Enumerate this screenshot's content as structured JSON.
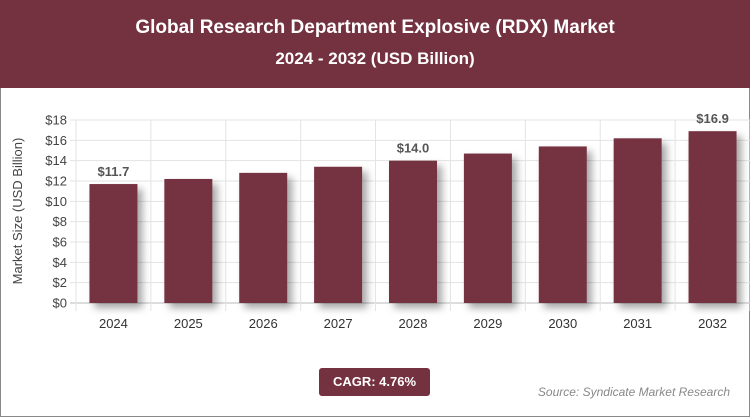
{
  "header": {
    "title": "Global Research Department Explosive (RDX) Market",
    "subtitle": "2024 - 2032 (USD Billion)"
  },
  "chart_data": {
    "type": "bar",
    "title": "Global Research Department Explosive (RDX) Market",
    "subtitle": "2024 - 2032 (USD Billion)",
    "ylabel": "Market Size (USD Billion)",
    "xlabel": "",
    "categories": [
      "2024",
      "2025",
      "2026",
      "2027",
      "2028",
      "2029",
      "2030",
      "2031",
      "2032"
    ],
    "values": [
      11.7,
      12.2,
      12.8,
      13.4,
      14.0,
      14.7,
      15.4,
      16.2,
      16.9
    ],
    "data_labels": {
      "0": "$11.7",
      "4": "$14.0",
      "8": "$16.9"
    },
    "ylim": [
      0,
      18
    ],
    "yticks": [
      "$0",
      "$2",
      "$4",
      "$6",
      "$8",
      "$10",
      "$12",
      "$14",
      "$16",
      "$18"
    ],
    "grid": true,
    "bar_color": "#74313f"
  },
  "footer": {
    "cagr": "CAGR: 4.76%",
    "source": "Source: Syndicate Market Research"
  }
}
